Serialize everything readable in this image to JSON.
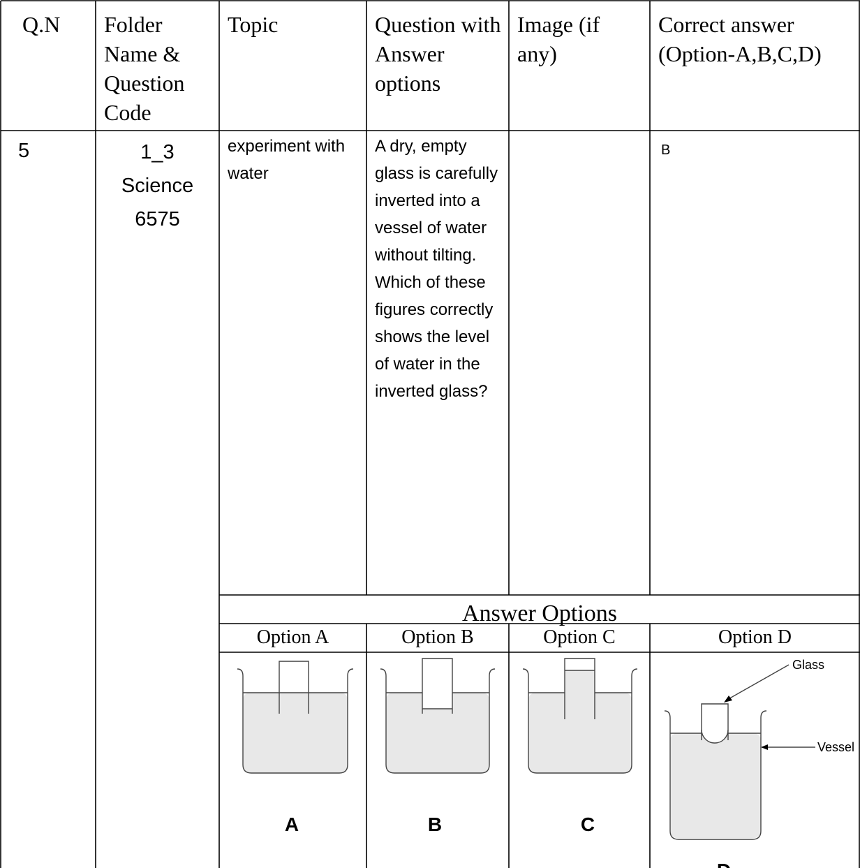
{
  "table": {
    "header": [
      "Q.N",
      "Folder Name & Question Code",
      "Topic",
      "Question with Answer options",
      "Image (if any)",
      "Correct answer (Option-A,B,C,D)"
    ],
    "row": {
      "qn": "5",
      "folder": [
        "1_3",
        "Science",
        "6575"
      ],
      "topic": "experiment with water",
      "question": "A dry, empty glass is carefully inverted into a vessel of water without tilting. Which of these figures correctly shows the level of water in the inverted glass?",
      "answer": "B"
    },
    "answer_options_title": "Answer  Options",
    "options": [
      {
        "label": "Option A",
        "figure_label": "A"
      },
      {
        "label": "Option B",
        "figure_label": "B"
      },
      {
        "label": "Option C",
        "figure_label": "C"
      },
      {
        "label": "Option D",
        "figure_label": "D"
      }
    ],
    "figure_annotations": [
      "Glass",
      "Vessel"
    ]
  }
}
